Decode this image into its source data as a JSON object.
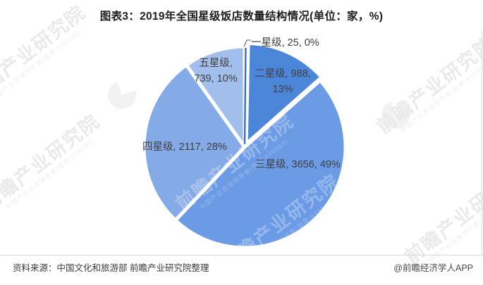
{
  "title": "图表3：2019年全国星级饭店数量结构情况(单位：家，%)",
  "chart_data": {
    "type": "pie",
    "title": "图表3：2019年全国星级饭店数量结构情况(单位：家，%)",
    "unit": "家，%",
    "categories": [
      "一星级",
      "二星级",
      "三星级",
      "四星级",
      "五星级"
    ],
    "values": [
      25,
      988,
      3656,
      2117,
      739
    ],
    "percents": [
      0,
      13,
      49,
      28,
      10
    ],
    "slice_colors": [
      "#3d6fb8",
      "#4c86d8",
      "#6b9be5",
      "#84aae8",
      "#a2bfec"
    ],
    "start_angle_deg": 0,
    "direction": "clockwise",
    "legend": "none (data labels on slices)",
    "labels": {
      "one_star": "一星级, 25, 0%",
      "two_star": "二星级, 988, 13%",
      "three_star": "三星级, 3656, 49%",
      "four_star": "四星级, 2117, 28%",
      "five_star": "五星级, 739, 10%"
    }
  },
  "footer": {
    "source": "资料来源：中国文化和旅游部 前瞻产业研究院整理",
    "credit": "@前瞻经济学人APP"
  },
  "watermark": {
    "brand": "前瞻产业研究院",
    "subtitle": "中国产业咨询领导者(股票:839599)"
  }
}
